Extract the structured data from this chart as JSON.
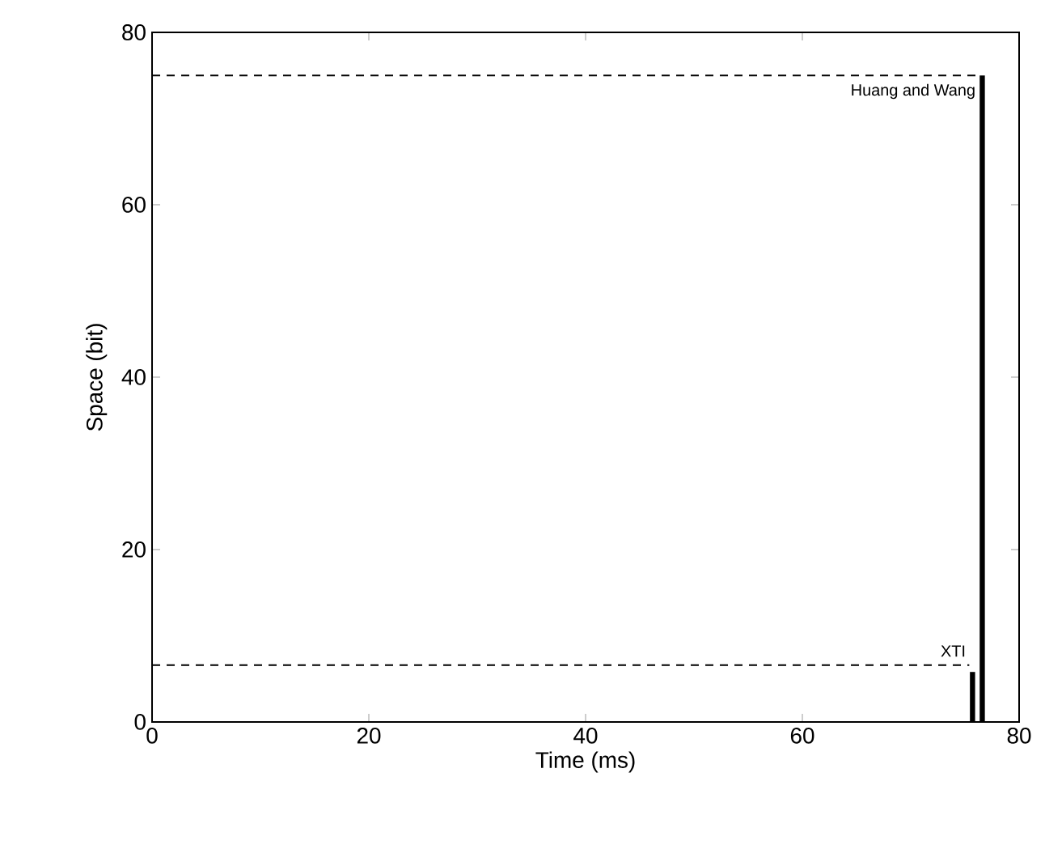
{
  "chart_data": {
    "type": "bar",
    "xlabel": "Time (ms)",
    "ylabel": "Space (bit)",
    "xlim": [
      0,
      80
    ],
    "ylim": [
      0,
      80
    ],
    "xticks": [
      0,
      20,
      40,
      60,
      80
    ],
    "yticks": [
      0,
      20,
      40,
      60,
      80
    ],
    "series": [
      {
        "x": [
          75.7,
          76.6
        ],
        "values": [
          5.8,
          75
        ],
        "color": "#000000"
      },
      {
        "type": "line",
        "x": [
          0,
          75.4
        ],
        "values": [
          6.6,
          6.6
        ],
        "color": "#000000",
        "line_style": "dashed"
      },
      {
        "type": "line",
        "x": [
          0,
          76.2
        ],
        "values": [
          75,
          75
        ],
        "color": "#000000",
        "line_style": "dashed"
      }
    ],
    "annotations": [
      {
        "text": "XTI",
        "x": 75.7,
        "y": 6.6
      },
      {
        "text": "Huang and Wang",
        "x": 76.6,
        "y": 75
      }
    ]
  }
}
